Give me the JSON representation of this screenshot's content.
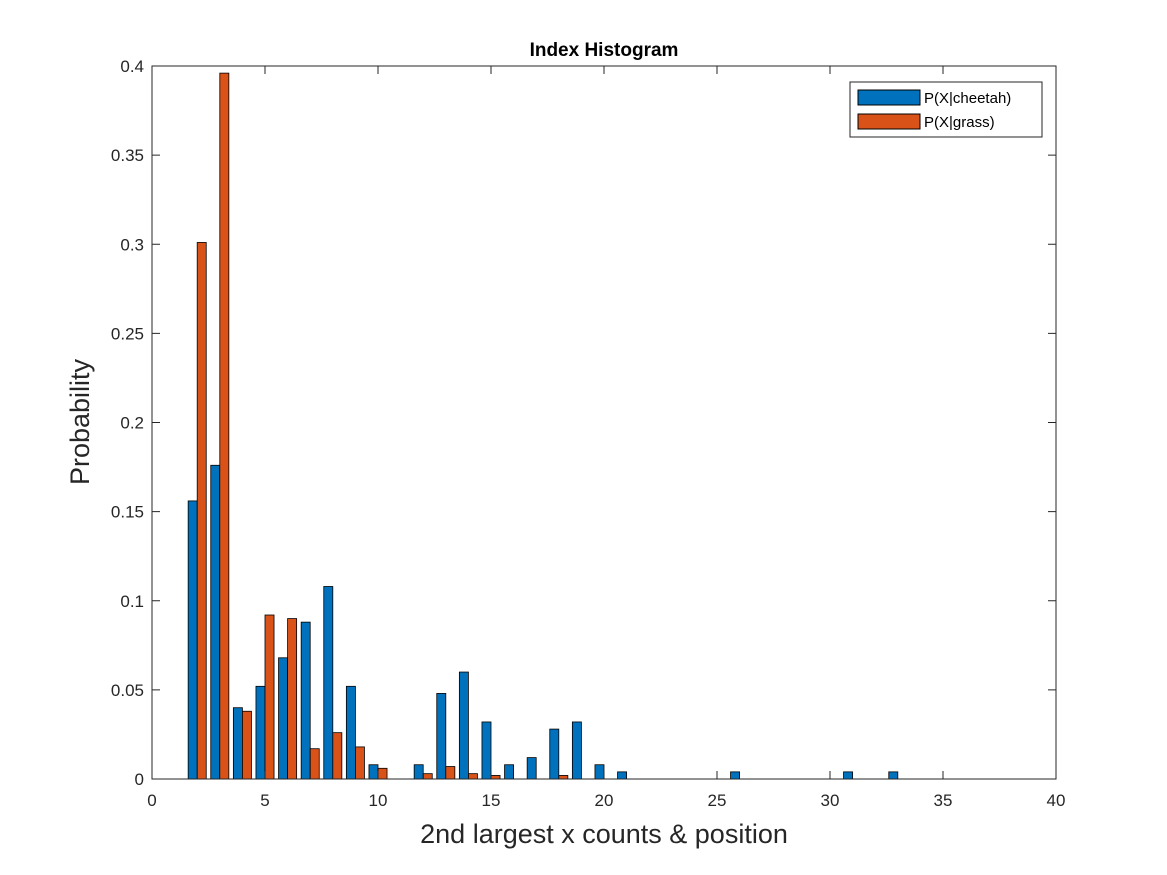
{
  "chart_data": {
    "type": "bar",
    "title": "Index Histogram",
    "xlabel": "2nd largest x counts & position",
    "ylabel": "Probability",
    "xlim": [
      0,
      40
    ],
    "ylim": [
      0,
      0.4
    ],
    "xticks": [
      0,
      5,
      10,
      15,
      20,
      25,
      30,
      35,
      40
    ],
    "yticks": [
      0,
      0.05,
      0.1,
      0.15,
      0.2,
      0.25,
      0.3,
      0.35,
      0.4
    ],
    "xtick_labels": [
      "0",
      "5",
      "10",
      "15",
      "20",
      "25",
      "30",
      "35",
      "40"
    ],
    "ytick_labels": [
      "0",
      "0.05",
      "0.1",
      "0.15",
      "0.2",
      "0.25",
      "0.3",
      "0.35",
      "0.4"
    ],
    "grid": false,
    "legend_position": "top-right",
    "categories": [
      1,
      2,
      3,
      4,
      5,
      6,
      7,
      8,
      9,
      10,
      11,
      12,
      13,
      14,
      15,
      16,
      17,
      18,
      19,
      20,
      21,
      22,
      23,
      24,
      25,
      26,
      27,
      28,
      29,
      30,
      31,
      32,
      33,
      34,
      35,
      36,
      37,
      38,
      39
    ],
    "series": [
      {
        "name": "P(X|cheetah)",
        "color": "#0072BD",
        "values": [
          0,
          0.156,
          0.176,
          0.04,
          0.052,
          0.068,
          0.088,
          0.108,
          0.052,
          0.008,
          0,
          0.008,
          0.048,
          0.06,
          0.032,
          0.008,
          0.012,
          0.028,
          0.032,
          0.008,
          0.004,
          0,
          0,
          0,
          0,
          0.004,
          0,
          0,
          0,
          0,
          0.004,
          0,
          0.004,
          0,
          0,
          0,
          0,
          0,
          0
        ]
      },
      {
        "name": "P(X|grass)",
        "color": "#D95319",
        "values": [
          0,
          0.301,
          0.396,
          0.038,
          0.092,
          0.09,
          0.017,
          0.026,
          0.018,
          0.006,
          0,
          0.003,
          0.007,
          0.003,
          0.002,
          0,
          0,
          0.002,
          0,
          0,
          0,
          0,
          0,
          0,
          0,
          0,
          0,
          0,
          0,
          0,
          0,
          0,
          0,
          0,
          0,
          0,
          0,
          0,
          0
        ]
      }
    ]
  }
}
